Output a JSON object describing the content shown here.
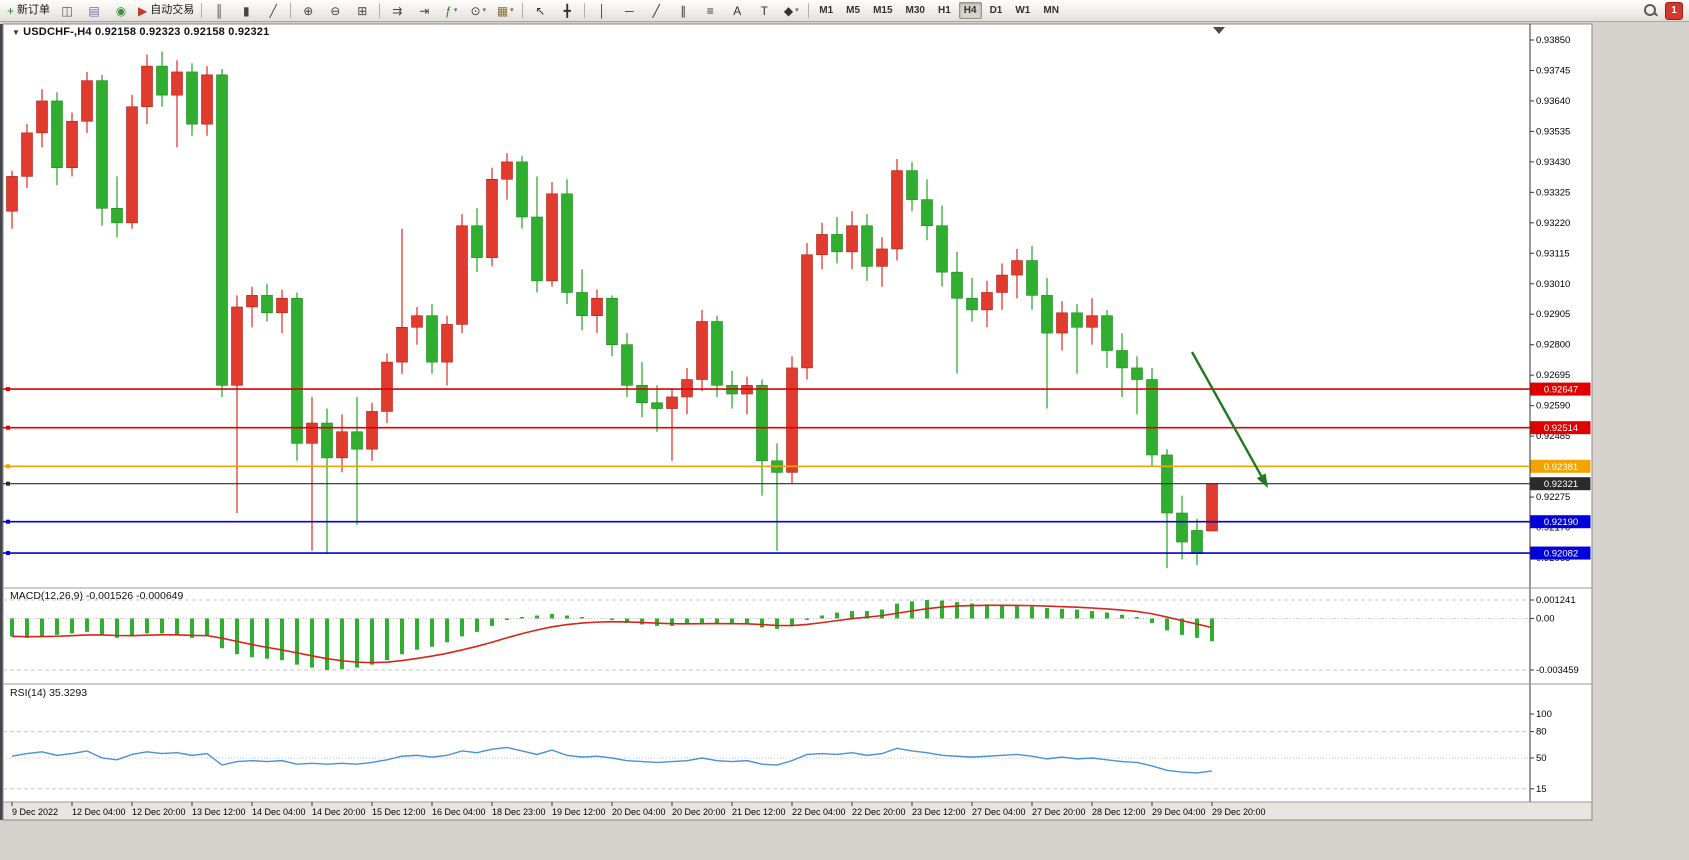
{
  "toolbar": {
    "items": [
      {
        "t": "b",
        "name": "new-order-button",
        "icon": "new-order-icon",
        "glyph": "+",
        "color": "#1f8a1f",
        "label": "新订单"
      },
      {
        "t": "b",
        "name": "charts-window-button",
        "icon": "chart-window-icon",
        "glyph": "◫",
        "color": "#555555"
      },
      {
        "t": "b",
        "name": "profiles-button",
        "icon": "profiles-icon",
        "glyph": "▤",
        "color": "#7b6ba0"
      },
      {
        "t": "b",
        "name": "market-watch-button",
        "icon": "market-watch-icon",
        "glyph": "◉",
        "color": "#3c8c3c"
      },
      {
        "t": "b",
        "name": "auto-trading-button",
        "icon": "auto-trading-icon",
        "glyph": "▶",
        "color": "#c23b22",
        "label": "自动交易"
      },
      {
        "t": "s"
      },
      {
        "t": "b",
        "name": "bar-chart-button",
        "icon": "bar-chart-icon",
        "glyph": "║",
        "color": "#444444"
      },
      {
        "t": "b",
        "name": "candlestick-chart-button",
        "icon": "candlestick-icon",
        "glyph": "▮",
        "color": "#444444"
      },
      {
        "t": "b",
        "name": "line-chart-button",
        "icon": "line-chart-icon",
        "glyph": "╱",
        "color": "#444444"
      },
      {
        "t": "s"
      },
      {
        "t": "b",
        "name": "zoom-in-button",
        "icon": "zoom-in-icon",
        "glyph": "⊕",
        "color": "#444444"
      },
      {
        "t": "b",
        "name": "zoom-out-button",
        "icon": "zoom-out-icon",
        "glyph": "⊖",
        "color": "#444444"
      },
      {
        "t": "b",
        "name": "tile-windows-button",
        "icon": "tile-windows-icon",
        "glyph": "⊞",
        "color": "#444444"
      },
      {
        "t": "s"
      },
      {
        "t": "b",
        "name": "auto-scroll-button",
        "icon": "auto-scroll-icon",
        "glyph": "⇉",
        "color": "#444444"
      },
      {
        "t": "b",
        "name": "chart-shift-button",
        "icon": "chart-shift-icon",
        "glyph": "⇥",
        "color": "#444444"
      },
      {
        "t": "b",
        "name": "indicators-button",
        "icon": "indicators-icon",
        "glyph": "ƒ",
        "color": "#2e7d32",
        "dd": true
      },
      {
        "t": "b",
        "name": "periods-button",
        "icon": "clock-icon",
        "glyph": "⊙",
        "color": "#444444",
        "dd": true
      },
      {
        "t": "b",
        "name": "templates-button",
        "icon": "template-icon",
        "glyph": "▦",
        "color": "#8a6d3b",
        "dd": true
      },
      {
        "t": "s"
      },
      {
        "t": "b",
        "name": "cursor-button",
        "icon": "cursor-icon",
        "glyph": "↖",
        "color": "#333333"
      },
      {
        "t": "b",
        "name": "crosshair-button",
        "icon": "crosshair-icon",
        "glyph": "╋",
        "color": "#333333"
      },
      {
        "t": "s"
      },
      {
        "t": "b",
        "name": "vertical-line-button",
        "icon": "vertical-line-icon",
        "glyph": "│",
        "color": "#333333"
      },
      {
        "t": "b",
        "name": "horizontal-line-button",
        "icon": "horizontal-line-icon",
        "glyph": "─",
        "color": "#333333"
      },
      {
        "t": "b",
        "name": "trendline-button",
        "icon": "trendline-icon",
        "glyph": "╱",
        "color": "#333333"
      },
      {
        "t": "b",
        "name": "channel-button",
        "icon": "channel-icon",
        "glyph": "∥",
        "color": "#333333"
      },
      {
        "t": "b",
        "name": "fibonacci-button",
        "icon": "fibonacci-icon",
        "glyph": "≡",
        "color": "#333333"
      },
      {
        "t": "b",
        "name": "text-button",
        "icon": "text-icon",
        "glyph": "A",
        "color": "#333333"
      },
      {
        "t": "b",
        "name": "text-label-button",
        "icon": "text-label-icon",
        "glyph": "T",
        "color": "#333333"
      },
      {
        "t": "b",
        "name": "arrows-button",
        "icon": "arrow-shapes-icon",
        "glyph": "◆",
        "color": "#333333",
        "dd": true
      },
      {
        "t": "s"
      }
    ],
    "timeframes": [
      "M1",
      "M5",
      "M15",
      "M30",
      "H1",
      "H4",
      "D1",
      "W1",
      "MN"
    ],
    "active_timeframe": "H4",
    "notification_count": "1"
  },
  "chart": {
    "title": "USDCHF-,H4 0.92158 0.92323 0.92158 0.92321",
    "symbol": "USDCHF-",
    "period": "H4",
    "ohlc": {
      "open": "0.92158",
      "high": "0.92323",
      "low": "0.92158",
      "close": "0.92321"
    },
    "price_axis_labels": [
      "0.93850",
      "0.93745",
      "0.93640",
      "0.93535",
      "0.93430",
      "0.93325",
      "0.93220",
      "0.93115",
      "0.93010",
      "0.92905",
      "0.92800",
      "0.92695",
      "0.92590",
      "0.92485",
      "0.92275",
      "0.92170",
      "0.92065"
    ],
    "time_axis_labels": [
      "9 Dec 2022",
      "12 Dec 04:00",
      "12 Dec 20:00",
      "13 Dec 12:00",
      "14 Dec 04:00",
      "14 Dec 20:00",
      "15 Dec 12:00",
      "16 Dec 04:00",
      "18 Dec 23:00",
      "19 Dec 12:00",
      "20 Dec 04:00",
      "20 Dec 20:00",
      "21 Dec 12:00",
      "22 Dec 04:00",
      "22 Dec 20:00",
      "23 Dec 12:00",
      "27 Dec 04:00",
      "27 Dec 20:00",
      "28 Dec 12:00",
      "29 Dec 04:00",
      "29 Dec 20:00"
    ],
    "hlines": [
      {
        "price": 0.92647,
        "label": "0.92647",
        "color": "#e00000"
      },
      {
        "price": 0.92514,
        "label": "0.92514",
        "color": "#e00000"
      },
      {
        "price": 0.92381,
        "label": "0.92381",
        "color": "#f2a500"
      },
      {
        "price": 0.92321,
        "label": "0.92321",
        "color": "#2b2b2b"
      },
      {
        "price": 0.9219,
        "label": "0.92190",
        "color": "#0000dd"
      },
      {
        "price": 0.92082,
        "label": "0.92082",
        "color": "#0000dd"
      }
    ],
    "colors": {
      "up": "#e13b30",
      "down": "#2fae2f",
      "macd_histogram": "#2fae2f",
      "macd_signal": "#d8251b",
      "rsi_line": "#4a90d9",
      "arrow": "#1f7a1f"
    }
  },
  "macd": {
    "label": "MACD(12,26,9) -0.001526 -0.000649",
    "params": "12,26,9",
    "value_main": "-0.001526",
    "value_signal": "-0.000649",
    "axis_labels": [
      "0.001241",
      "0.00",
      "-0.003459"
    ]
  },
  "rsi": {
    "label": "RSI(14) 35.3293",
    "params": "14",
    "value": "35.3293",
    "axis_labels": [
      "100",
      "80",
      "50",
      "15"
    ],
    "levels": [
      80,
      50,
      15
    ]
  },
  "chart_data": {
    "type": "candlestick",
    "symbol": "USDCHF-",
    "timeframe": "H4",
    "title": "USDCHF-,H4",
    "x_label_every_n_candles": 4,
    "price_axis_range": [
      0.9197,
      0.939
    ],
    "candles_ohlc": [
      [
        0.9326,
        0.934,
        0.932,
        0.9338
      ],
      [
        0.9338,
        0.9356,
        0.9334,
        0.9353
      ],
      [
        0.9353,
        0.9368,
        0.9348,
        0.9364
      ],
      [
        0.9364,
        0.9367,
        0.9335,
        0.9341
      ],
      [
        0.9341,
        0.936,
        0.9338,
        0.9357
      ],
      [
        0.9357,
        0.9374,
        0.9353,
        0.9371
      ],
      [
        0.9371,
        0.9373,
        0.9321,
        0.9327
      ],
      [
        0.9327,
        0.9338,
        0.9317,
        0.9322
      ],
      [
        0.9322,
        0.9366,
        0.932,
        0.9362
      ],
      [
        0.9362,
        0.938,
        0.9356,
        0.9376
      ],
      [
        0.9376,
        0.9381,
        0.9362,
        0.9366
      ],
      [
        0.9366,
        0.9378,
        0.9348,
        0.9374
      ],
      [
        0.9374,
        0.9377,
        0.9352,
        0.9356
      ],
      [
        0.9356,
        0.9376,
        0.9352,
        0.9373
      ],
      [
        0.9373,
        0.9375,
        0.9262,
        0.9266
      ],
      [
        0.9266,
        0.9297,
        0.9222,
        0.9293
      ],
      [
        0.9293,
        0.93,
        0.9286,
        0.9297
      ],
      [
        0.9297,
        0.9301,
        0.9288,
        0.9291
      ],
      [
        0.9291,
        0.9299,
        0.9284,
        0.9296
      ],
      [
        0.9296,
        0.9298,
        0.924,
        0.9246
      ],
      [
        0.9246,
        0.9262,
        0.9209,
        0.9253
      ],
      [
        0.9253,
        0.9258,
        0.9208,
        0.9241
      ],
      [
        0.9241,
        0.9256,
        0.9236,
        0.925
      ],
      [
        0.925,
        0.9262,
        0.9218,
        0.9244
      ],
      [
        0.9244,
        0.926,
        0.924,
        0.9257
      ],
      [
        0.9257,
        0.9277,
        0.9253,
        0.9274
      ],
      [
        0.9274,
        0.932,
        0.927,
        0.9286
      ],
      [
        0.9286,
        0.9293,
        0.928,
        0.929
      ],
      [
        0.929,
        0.9294,
        0.927,
        0.9274
      ],
      [
        0.9274,
        0.929,
        0.9266,
        0.9287
      ],
      [
        0.9287,
        0.9325,
        0.9284,
        0.9321
      ],
      [
        0.9321,
        0.9327,
        0.9305,
        0.931
      ],
      [
        0.931,
        0.9341,
        0.9307,
        0.9337
      ],
      [
        0.9337,
        0.9346,
        0.933,
        0.9343
      ],
      [
        0.9343,
        0.9345,
        0.932,
        0.9324
      ],
      [
        0.9324,
        0.9338,
        0.9298,
        0.9302
      ],
      [
        0.9302,
        0.9336,
        0.93,
        0.9332
      ],
      [
        0.9332,
        0.9337,
        0.9294,
        0.9298
      ],
      [
        0.9298,
        0.9306,
        0.9285,
        0.929
      ],
      [
        0.929,
        0.9299,
        0.9284,
        0.9296
      ],
      [
        0.9296,
        0.9297,
        0.9276,
        0.928
      ],
      [
        0.928,
        0.9284,
        0.9262,
        0.9266
      ],
      [
        0.9266,
        0.9274,
        0.9255,
        0.926
      ],
      [
        0.926,
        0.9266,
        0.925,
        0.9258
      ],
      [
        0.9258,
        0.9265,
        0.924,
        0.9262
      ],
      [
        0.9262,
        0.9272,
        0.9256,
        0.9268
      ],
      [
        0.9268,
        0.9292,
        0.9264,
        0.9288
      ],
      [
        0.9288,
        0.929,
        0.9262,
        0.9266
      ],
      [
        0.9266,
        0.9271,
        0.9258,
        0.9263
      ],
      [
        0.9263,
        0.9269,
        0.9256,
        0.9266
      ],
      [
        0.9266,
        0.9268,
        0.9228,
        0.924
      ],
      [
        0.924,
        0.9246,
        0.9209,
        0.9236
      ],
      [
        0.9236,
        0.9276,
        0.9232,
        0.9272
      ],
      [
        0.9272,
        0.9315,
        0.9268,
        0.9311
      ],
      [
        0.9311,
        0.9322,
        0.9306,
        0.9318
      ],
      [
        0.9318,
        0.9324,
        0.9308,
        0.9312
      ],
      [
        0.9312,
        0.9326,
        0.9306,
        0.9321
      ],
      [
        0.9321,
        0.9325,
        0.9302,
        0.9307
      ],
      [
        0.9307,
        0.9317,
        0.93,
        0.9313
      ],
      [
        0.9313,
        0.9344,
        0.9309,
        0.934
      ],
      [
        0.934,
        0.9343,
        0.9326,
        0.933
      ],
      [
        0.933,
        0.9337,
        0.9316,
        0.9321
      ],
      [
        0.9321,
        0.9328,
        0.93,
        0.9305
      ],
      [
        0.9305,
        0.9312,
        0.927,
        0.9296
      ],
      [
        0.9296,
        0.9303,
        0.9288,
        0.9292
      ],
      [
        0.9292,
        0.9302,
        0.9286,
        0.9298
      ],
      [
        0.9298,
        0.9308,
        0.9292,
        0.9304
      ],
      [
        0.9304,
        0.9313,
        0.9296,
        0.9309
      ],
      [
        0.9309,
        0.9314,
        0.9292,
        0.9297
      ],
      [
        0.9297,
        0.9303,
        0.9258,
        0.9284
      ],
      [
        0.9284,
        0.9295,
        0.9278,
        0.9291
      ],
      [
        0.9291,
        0.9294,
        0.927,
        0.9286
      ],
      [
        0.9286,
        0.9296,
        0.928,
        0.929
      ],
      [
        0.929,
        0.9292,
        0.9272,
        0.9278
      ],
      [
        0.9278,
        0.9284,
        0.9262,
        0.9272
      ],
      [
        0.9272,
        0.9276,
        0.9256,
        0.9268
      ],
      [
        0.9268,
        0.9272,
        0.9238,
        0.9242
      ],
      [
        0.9242,
        0.9244,
        0.9203,
        0.9222
      ],
      [
        0.9222,
        0.9228,
        0.9206,
        0.9212
      ],
      [
        0.9216,
        0.922,
        0.9204,
        0.9208
      ],
      [
        0.92158,
        0.92323,
        0.92158,
        0.92321
      ]
    ],
    "macd_histogram": [
      -0.0012,
      -0.0013,
      -0.0012,
      -0.0011,
      -0.001,
      -0.0009,
      -0.0011,
      -0.0013,
      -0.0012,
      -0.001,
      -0.001,
      -0.0011,
      -0.0013,
      -0.0012,
      -0.002,
      -0.0024,
      -0.0026,
      -0.0027,
      -0.0028,
      -0.0031,
      -0.0033,
      -0.003459,
      -0.0034,
      -0.0033,
      -0.0031,
      -0.0028,
      -0.0024,
      -0.0021,
      -0.0019,
      -0.0016,
      -0.0012,
      -0.0009,
      -0.0005,
      -0.0001,
      0.0001,
      0.0002,
      0.0003,
      0.0002,
      0.0001,
      0.0,
      -0.0001,
      -0.0003,
      -0.0004,
      -0.0005,
      -0.0005,
      -0.0004,
      -0.0003,
      -0.0003,
      -0.0004,
      -0.0004,
      -0.0006,
      -0.0007,
      -0.0005,
      -0.0001,
      0.0002,
      0.0004,
      0.0005,
      0.0005,
      0.0006,
      0.001,
      0.00115,
      0.001241,
      0.0012,
      0.0011,
      0.001,
      0.00095,
      0.0009,
      0.00085,
      0.0008,
      0.0007,
      0.00065,
      0.0006,
      0.0005,
      0.0004,
      0.00025,
      0.0001,
      -0.0003,
      -0.0008,
      -0.0011,
      -0.0013,
      -0.001526
    ],
    "rsi_values": [
      52,
      55,
      57,
      53,
      55,
      58,
      50,
      48,
      54,
      57,
      55,
      56,
      53,
      55,
      42,
      46,
      47,
      46,
      47,
      43,
      44,
      43,
      44,
      43,
      45,
      48,
      52,
      53,
      51,
      53,
      58,
      56,
      60,
      62,
      58,
      54,
      59,
      53,
      51,
      52,
      50,
      47,
      46,
      45,
      46,
      47,
      50,
      47,
      46,
      47,
      43,
      42,
      47,
      54,
      55,
      54,
      56,
      53,
      55,
      61,
      58,
      56,
      53,
      52,
      51,
      52,
      53,
      54,
      52,
      49,
      51,
      49,
      50,
      48,
      46,
      45,
      41,
      36,
      34,
      33,
      35.3
    ],
    "horizontal_lines": [
      0.92647,
      0.92514,
      0.92381,
      0.92321,
      0.9219,
      0.92082
    ],
    "annotation_arrow": {
      "direction": "down-right",
      "color": "#1f7a1f"
    }
  }
}
